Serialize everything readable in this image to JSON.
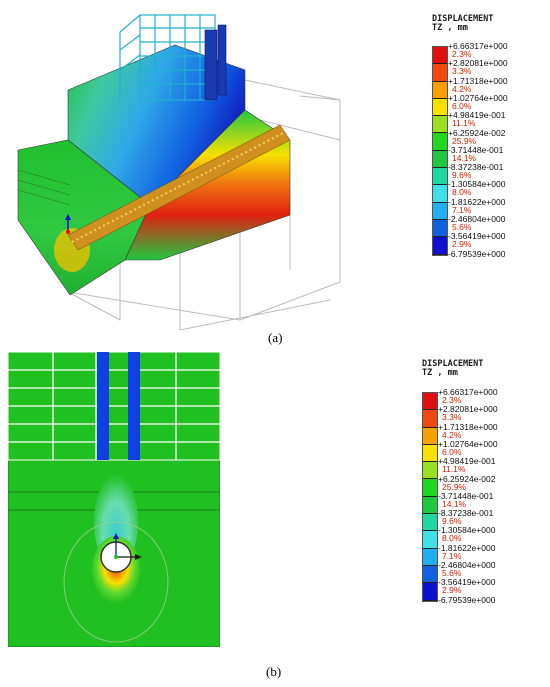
{
  "captions": {
    "a": "(a)",
    "b": "(b)"
  },
  "legend": {
    "title_line1": "DISPLACEMENT",
    "title_line2": "TZ , mm",
    "values": [
      "+6.66317e+000",
      "+2.82081e+000",
      "+1.71318e+000",
      "+1.02764e+000",
      "+4.98419e-001",
      "+6.25924e-002",
      "-3.71448e-001",
      "-8.37238e-001",
      "-1.30584e+000",
      "-1.81622e+000",
      "-2.46804e+000",
      "-3.56419e+000",
      "-6.79539e+000"
    ],
    "percents": [
      "2.3%",
      "3.3%",
      "4.2%",
      "6.0%",
      "11.1%",
      "25.9%",
      "14.1%",
      "9.6%",
      "8.0%",
      "7.1%",
      "5.6%",
      "2.9%"
    ],
    "colors": [
      "#e01010",
      "#f04810",
      "#f8a000",
      "#f8e000",
      "#98e020",
      "#20d820",
      "#20c840",
      "#20d8a0",
      "#40e0e8",
      "#20b0f0",
      "#1060e0",
      "#1010d0"
    ]
  }
}
